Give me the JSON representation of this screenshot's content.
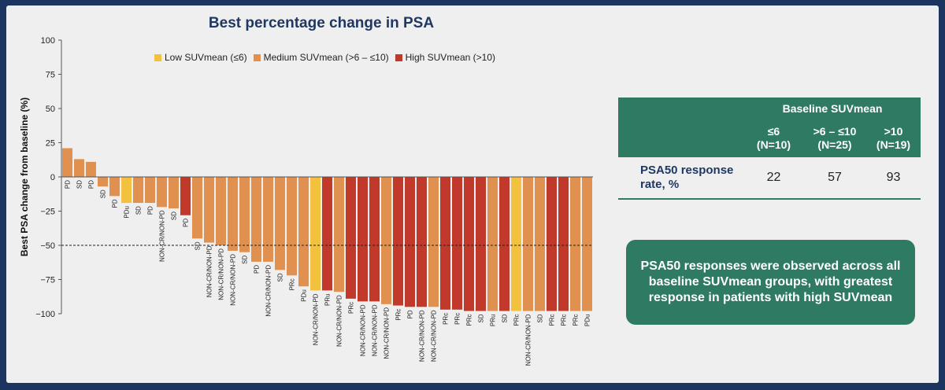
{
  "chart_data": {
    "type": "bar",
    "title": "Best percentage change in PSA",
    "ylabel": "Best PSA change from baseline (%)",
    "ylim": [
      -100,
      100
    ],
    "yticks": [
      "100",
      "75",
      "50",
      "25",
      "0",
      "−25",
      "−50",
      "−75",
      "−100"
    ],
    "threshold": -50,
    "series": [
      {
        "name": "Low SUVmean (≤6)",
        "color": "#f2c13e"
      },
      {
        "name": "Medium SUVmean (>6 – ≤10)",
        "color": "#e0904f"
      },
      {
        "name": "High SUVmean (>10)",
        "color": "#c0392b"
      }
    ],
    "bars": [
      {
        "label": "PD",
        "value": 21,
        "group": 1
      },
      {
        "label": "SD",
        "value": 13,
        "group": 1
      },
      {
        "label": "PD",
        "value": 11,
        "group": 1
      },
      {
        "label": "SD",
        "value": -7,
        "group": 1
      },
      {
        "label": "PD",
        "value": -14,
        "group": 1
      },
      {
        "label": "PDu",
        "value": -19,
        "group": 0
      },
      {
        "label": "SD",
        "value": -19,
        "group": 1
      },
      {
        "label": "PD",
        "value": -19,
        "group": 1
      },
      {
        "label": "NON-CR/NON-PD",
        "value": -22,
        "group": 1
      },
      {
        "label": "SD",
        "value": -23,
        "group": 1
      },
      {
        "label": "PD",
        "value": -28,
        "group": 2
      },
      {
        "label": "SD",
        "value": -45,
        "group": 1
      },
      {
        "label": "NON-CR/NON-PD",
        "value": -48,
        "group": 1
      },
      {
        "label": "NON-CR/NON-PD",
        "value": -50,
        "group": 1
      },
      {
        "label": "NON-CR/NON-PD",
        "value": -54,
        "group": 1
      },
      {
        "label": "SD",
        "value": -55,
        "group": 1
      },
      {
        "label": "PD",
        "value": -62,
        "group": 1
      },
      {
        "label": "NON-CR/NON-PD",
        "value": -62,
        "group": 1
      },
      {
        "label": "SD",
        "value": -68,
        "group": 1
      },
      {
        "label": "PRc",
        "value": -72,
        "group": 1
      },
      {
        "label": "PDu",
        "value": -80,
        "group": 1
      },
      {
        "label": "NON-CR/NON-PD",
        "value": -83,
        "group": 0
      },
      {
        "label": "PRu",
        "value": -83,
        "group": 2
      },
      {
        "label": "NON-CR/NON-PD",
        "value": -84,
        "group": 1
      },
      {
        "label": "PRc",
        "value": -89,
        "group": 2
      },
      {
        "label": "NON-CR/NON-PD",
        "value": -91,
        "group": 2
      },
      {
        "label": "NON-CR/NON-PD",
        "value": -91,
        "group": 2
      },
      {
        "label": "NON-CR/NON-PD",
        "value": -93,
        "group": 1
      },
      {
        "label": "PRc",
        "value": -94,
        "group": 2
      },
      {
        "label": "PD",
        "value": -95,
        "group": 2
      },
      {
        "label": "NON-CR/NON-PD",
        "value": -95,
        "group": 2
      },
      {
        "label": "NON-CR/NON-PD",
        "value": -95,
        "group": 1
      },
      {
        "label": "PRc",
        "value": -97,
        "group": 2
      },
      {
        "label": "PRc",
        "value": -97,
        "group": 2
      },
      {
        "label": "PRc",
        "value": -98,
        "group": 2
      },
      {
        "label": "SD",
        "value": -98,
        "group": 2
      },
      {
        "label": "PRu",
        "value": -98,
        "group": 1
      },
      {
        "label": "SD",
        "value": -98,
        "group": 2
      },
      {
        "label": "PRc",
        "value": -98,
        "group": 0
      },
      {
        "label": "NON-CR/NON-PD",
        "value": -98,
        "group": 1
      },
      {
        "label": "SD",
        "value": -98,
        "group": 1
      },
      {
        "label": "PRc",
        "value": -98,
        "group": 2
      },
      {
        "label": "PRc",
        "value": -98,
        "group": 2
      },
      {
        "label": "PRc",
        "value": -98,
        "group": 1
      },
      {
        "label": "PDu",
        "value": -98,
        "group": 1
      }
    ]
  },
  "table": {
    "band_header": "Baseline SUVmean",
    "columns": [
      {
        "line1": "≤6",
        "line2": "(N=10)"
      },
      {
        "line1": ">6 – ≤10",
        "line2": "(N=25)"
      },
      {
        "line1": ">10",
        "line2": "(N=19)"
      }
    ],
    "row_label_line1": "PSA50 response",
    "row_label_line2": "rate, %",
    "values": [
      "22",
      "57",
      "93"
    ]
  },
  "callout": "PSA50 responses were observed across all baseline SUVmean groups, with greatest response in patients with high SUVmean"
}
